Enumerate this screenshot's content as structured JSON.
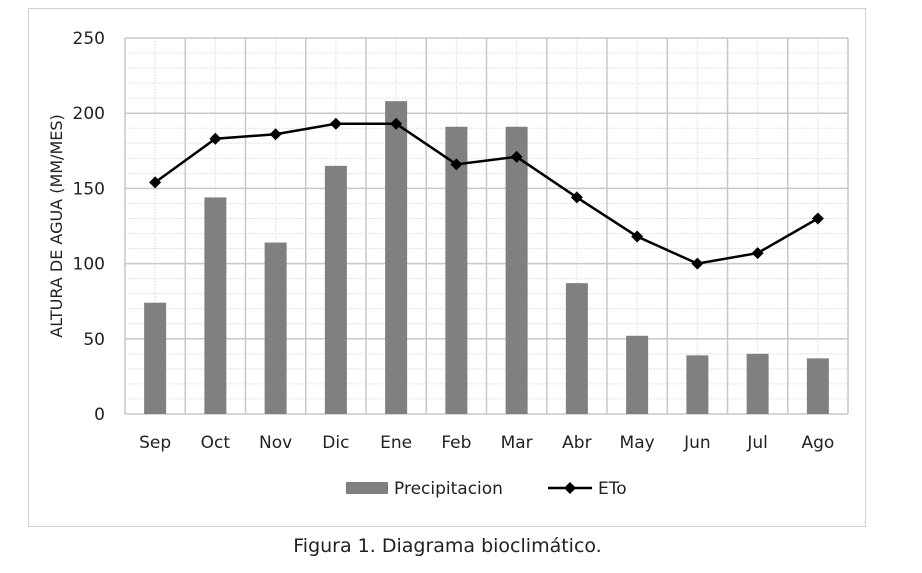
{
  "chart_data": {
    "type": "bar+line",
    "categories": [
      "Sep",
      "Oct",
      "Nov",
      "Dic",
      "Ene",
      "Feb",
      "Mar",
      "Abr",
      "May",
      "Jun",
      "Jul",
      "Ago"
    ],
    "series": [
      {
        "name": "Precipitacion",
        "type": "bar",
        "color": "#808080",
        "values": [
          74,
          144,
          114,
          165,
          208,
          191,
          191,
          87,
          52,
          39,
          40,
          37
        ]
      },
      {
        "name": "ETo",
        "type": "line",
        "color": "#000000",
        "marker": "diamond",
        "values": [
          154,
          183,
          186,
          193,
          193,
          166,
          171,
          144,
          118,
          100,
          107,
          130
        ]
      }
    ],
    "ylabel": "ALTURA DE AGUA (MM/MES)",
    "xlabel": "",
    "ylim": [
      0,
      250
    ],
    "yticks": [
      0,
      50,
      100,
      150,
      200,
      250
    ],
    "grid": true,
    "legend": "bottom"
  },
  "caption": "Figura 1. Diagrama bioclimático."
}
